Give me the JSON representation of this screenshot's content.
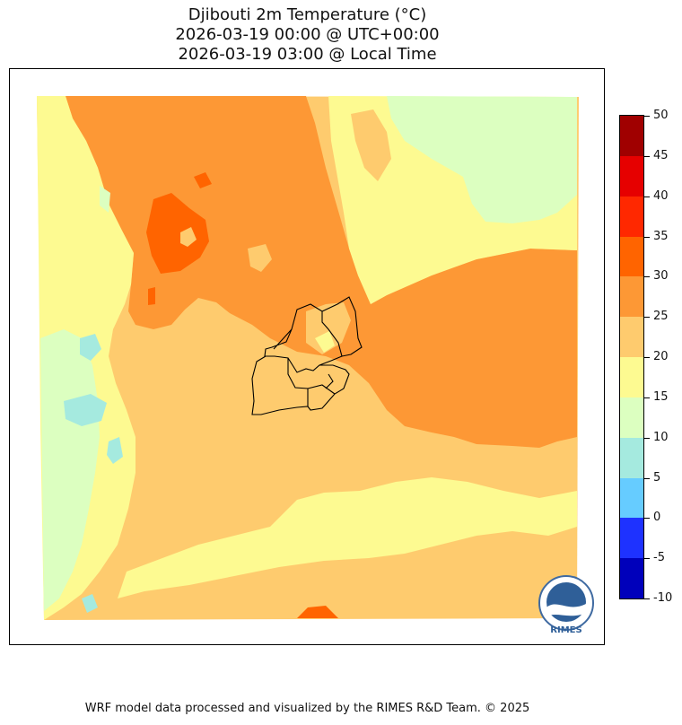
{
  "title": {
    "line1": "Djibouti 2m Temperature (°C)",
    "line2": "2026-03-19 00:00 @ UTC+00:00",
    "line3": "2026-03-19 03:00 @ Local Time"
  },
  "colorbar": {
    "ticks": [
      "50",
      "45",
      "40",
      "35",
      "30",
      "25",
      "20",
      "15",
      "10",
      "5",
      "0",
      "-5",
      "-10"
    ],
    "levels": [
      {
        "range": [
          45,
          50
        ],
        "color": "#a00000"
      },
      {
        "range": [
          40,
          45
        ],
        "color": "#e60000"
      },
      {
        "range": [
          35,
          40
        ],
        "color": "#ff2800"
      },
      {
        "range": [
          30,
          35
        ],
        "color": "#ff6400"
      },
      {
        "range": [
          25,
          30
        ],
        "color": "#fd9835"
      },
      {
        "range": [
          20,
          25
        ],
        "color": "#fecb6e"
      },
      {
        "range": [
          15,
          20
        ],
        "color": "#fdfa91"
      },
      {
        "range": [
          10,
          15
        ],
        "color": "#dcffc0"
      },
      {
        "range": [
          5,
          10
        ],
        "color": "#a5eadf"
      },
      {
        "range": [
          0,
          5
        ],
        "color": "#66ccff"
      },
      {
        "range": [
          -5,
          0
        ],
        "color": "#1e32ff"
      },
      {
        "range": [
          -10,
          -5
        ],
        "color": "#0000bb"
      }
    ]
  },
  "logo": {
    "text": "RIMES"
  },
  "footer": {
    "text": "WRF model data processed and visualized by the RIMES R&D Team. © 2025"
  }
}
